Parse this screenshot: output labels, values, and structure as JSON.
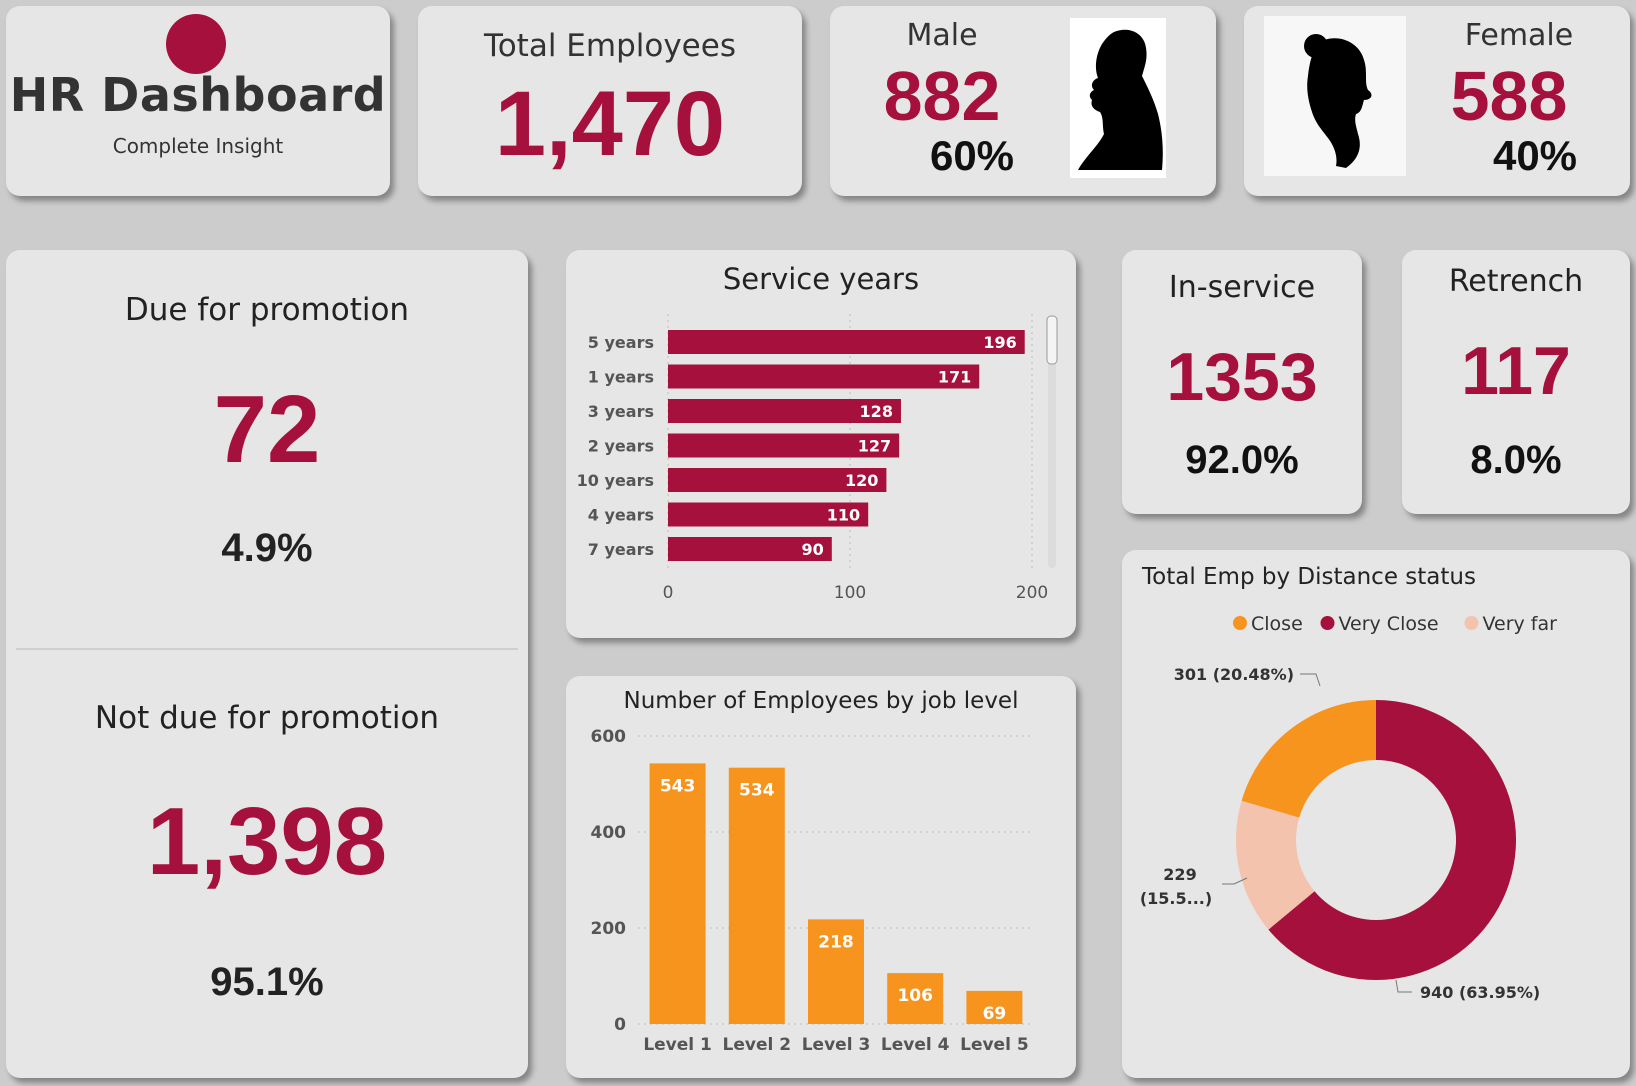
{
  "colors": {
    "accent": "#a5103c",
    "orange": "#f7941d",
    "peach": "#f4c3ad",
    "card": "#e6e6e6",
    "bg": "#cccccc"
  },
  "header": {
    "title": "HR Dashboard",
    "subtitle": "Complete Insight",
    "logo_icon": "red-circle-icon"
  },
  "total": {
    "label": "Total Employees",
    "value": "1,470"
  },
  "male": {
    "label": "Male",
    "value": "882",
    "pct": "60%",
    "icon": "male-silhouette-icon"
  },
  "female": {
    "label": "Female",
    "value": "588",
    "pct": "40%",
    "icon": "female-silhouette-icon"
  },
  "promotion": {
    "due_label": "Due for promotion",
    "due_value": "72",
    "due_pct": "4.9%",
    "not_label": "Not due for promotion",
    "not_value": "1,398",
    "not_pct": "95.1%"
  },
  "inservice": {
    "label": "In-service",
    "value": "1353",
    "pct": "92.0%"
  },
  "retrench": {
    "label": "Retrench",
    "value": "117",
    "pct": "8.0%"
  },
  "chart_data": [
    {
      "type": "bar",
      "orientation": "horizontal",
      "title": "Service years",
      "categories": [
        "5 years",
        "1 years",
        "3 years",
        "2 years",
        "10 years",
        "4 years",
        "7 years"
      ],
      "values": [
        196,
        171,
        128,
        127,
        120,
        110,
        90
      ],
      "xticks": [
        "0",
        "100",
        "200"
      ],
      "xlim": [
        0,
        200
      ],
      "color": "#a5103c"
    },
    {
      "type": "bar",
      "title": "Number of Employees by job level",
      "categories": [
        "Level 1",
        "Level 2",
        "Level 3",
        "Level 4",
        "Level 5"
      ],
      "values": [
        543,
        534,
        218,
        106,
        69
      ],
      "yticks": [
        "0",
        "200",
        "400",
        "600"
      ],
      "ylim": [
        0,
        600
      ],
      "color": "#f7941d"
    },
    {
      "type": "pie",
      "variant": "donut",
      "title": "Total Emp by Distance status",
      "legend": [
        "Close",
        "Very Close",
        "Very far"
      ],
      "legend_position": "top",
      "slices": [
        {
          "name": "Very Close",
          "value": 940,
          "label": "940 (63.95%)",
          "color": "#a5103c"
        },
        {
          "name": "Very far",
          "value": 229,
          "label_line1": "229",
          "label_line2": "(15.5...)",
          "color": "#f4c3ad"
        },
        {
          "name": "Close",
          "value": 301,
          "label": "301 (20.48%)",
          "color": "#f7941d"
        }
      ]
    }
  ]
}
